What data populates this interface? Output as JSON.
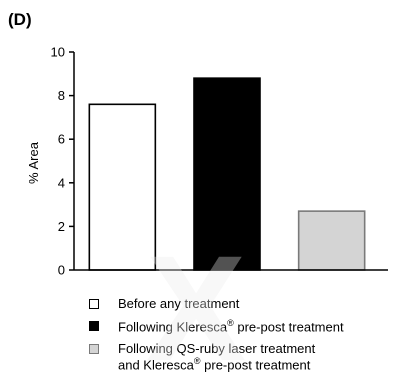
{
  "panel_label": "(D)",
  "chart_data": {
    "type": "bar",
    "ylabel": "% Area",
    "xlabel": "",
    "ylim": [
      0,
      10
    ],
    "yticks": [
      0,
      2,
      4,
      6,
      8,
      10
    ],
    "categories": [
      "Before any treatment",
      "Following Kleresca® pre-post treatment",
      "Following QS-ruby laser treatment and Kleresca® pre-post treatment"
    ],
    "values": [
      7.6,
      8.8,
      2.7
    ],
    "colors": [
      "#ffffff",
      "#000000",
      "#d4d4d4"
    ],
    "edge_colors": [
      "#000000",
      "#000000",
      "#7a7a7a"
    ],
    "legend_placement": "bottom",
    "grid": false
  },
  "legend": [
    {
      "lines": [
        {
          "text": "Before any treatment",
          "sup": "",
          "after": ""
        }
      ],
      "color": "#ffffff",
      "edge": "#000000"
    },
    {
      "lines": [
        {
          "text": "Following Kleresca",
          "sup": "®",
          "after": " pre-post treatment"
        }
      ],
      "color": "#000000",
      "edge": "#000000"
    },
    {
      "lines": [
        {
          "text": "Following QS-ruby laser treatment",
          "sup": "",
          "after": ""
        },
        {
          "text": "and Kleresca",
          "sup": "®",
          "after": " pre-post treatment"
        }
      ],
      "color": "#d4d4d4",
      "edge": "#7a7a7a"
    }
  ]
}
